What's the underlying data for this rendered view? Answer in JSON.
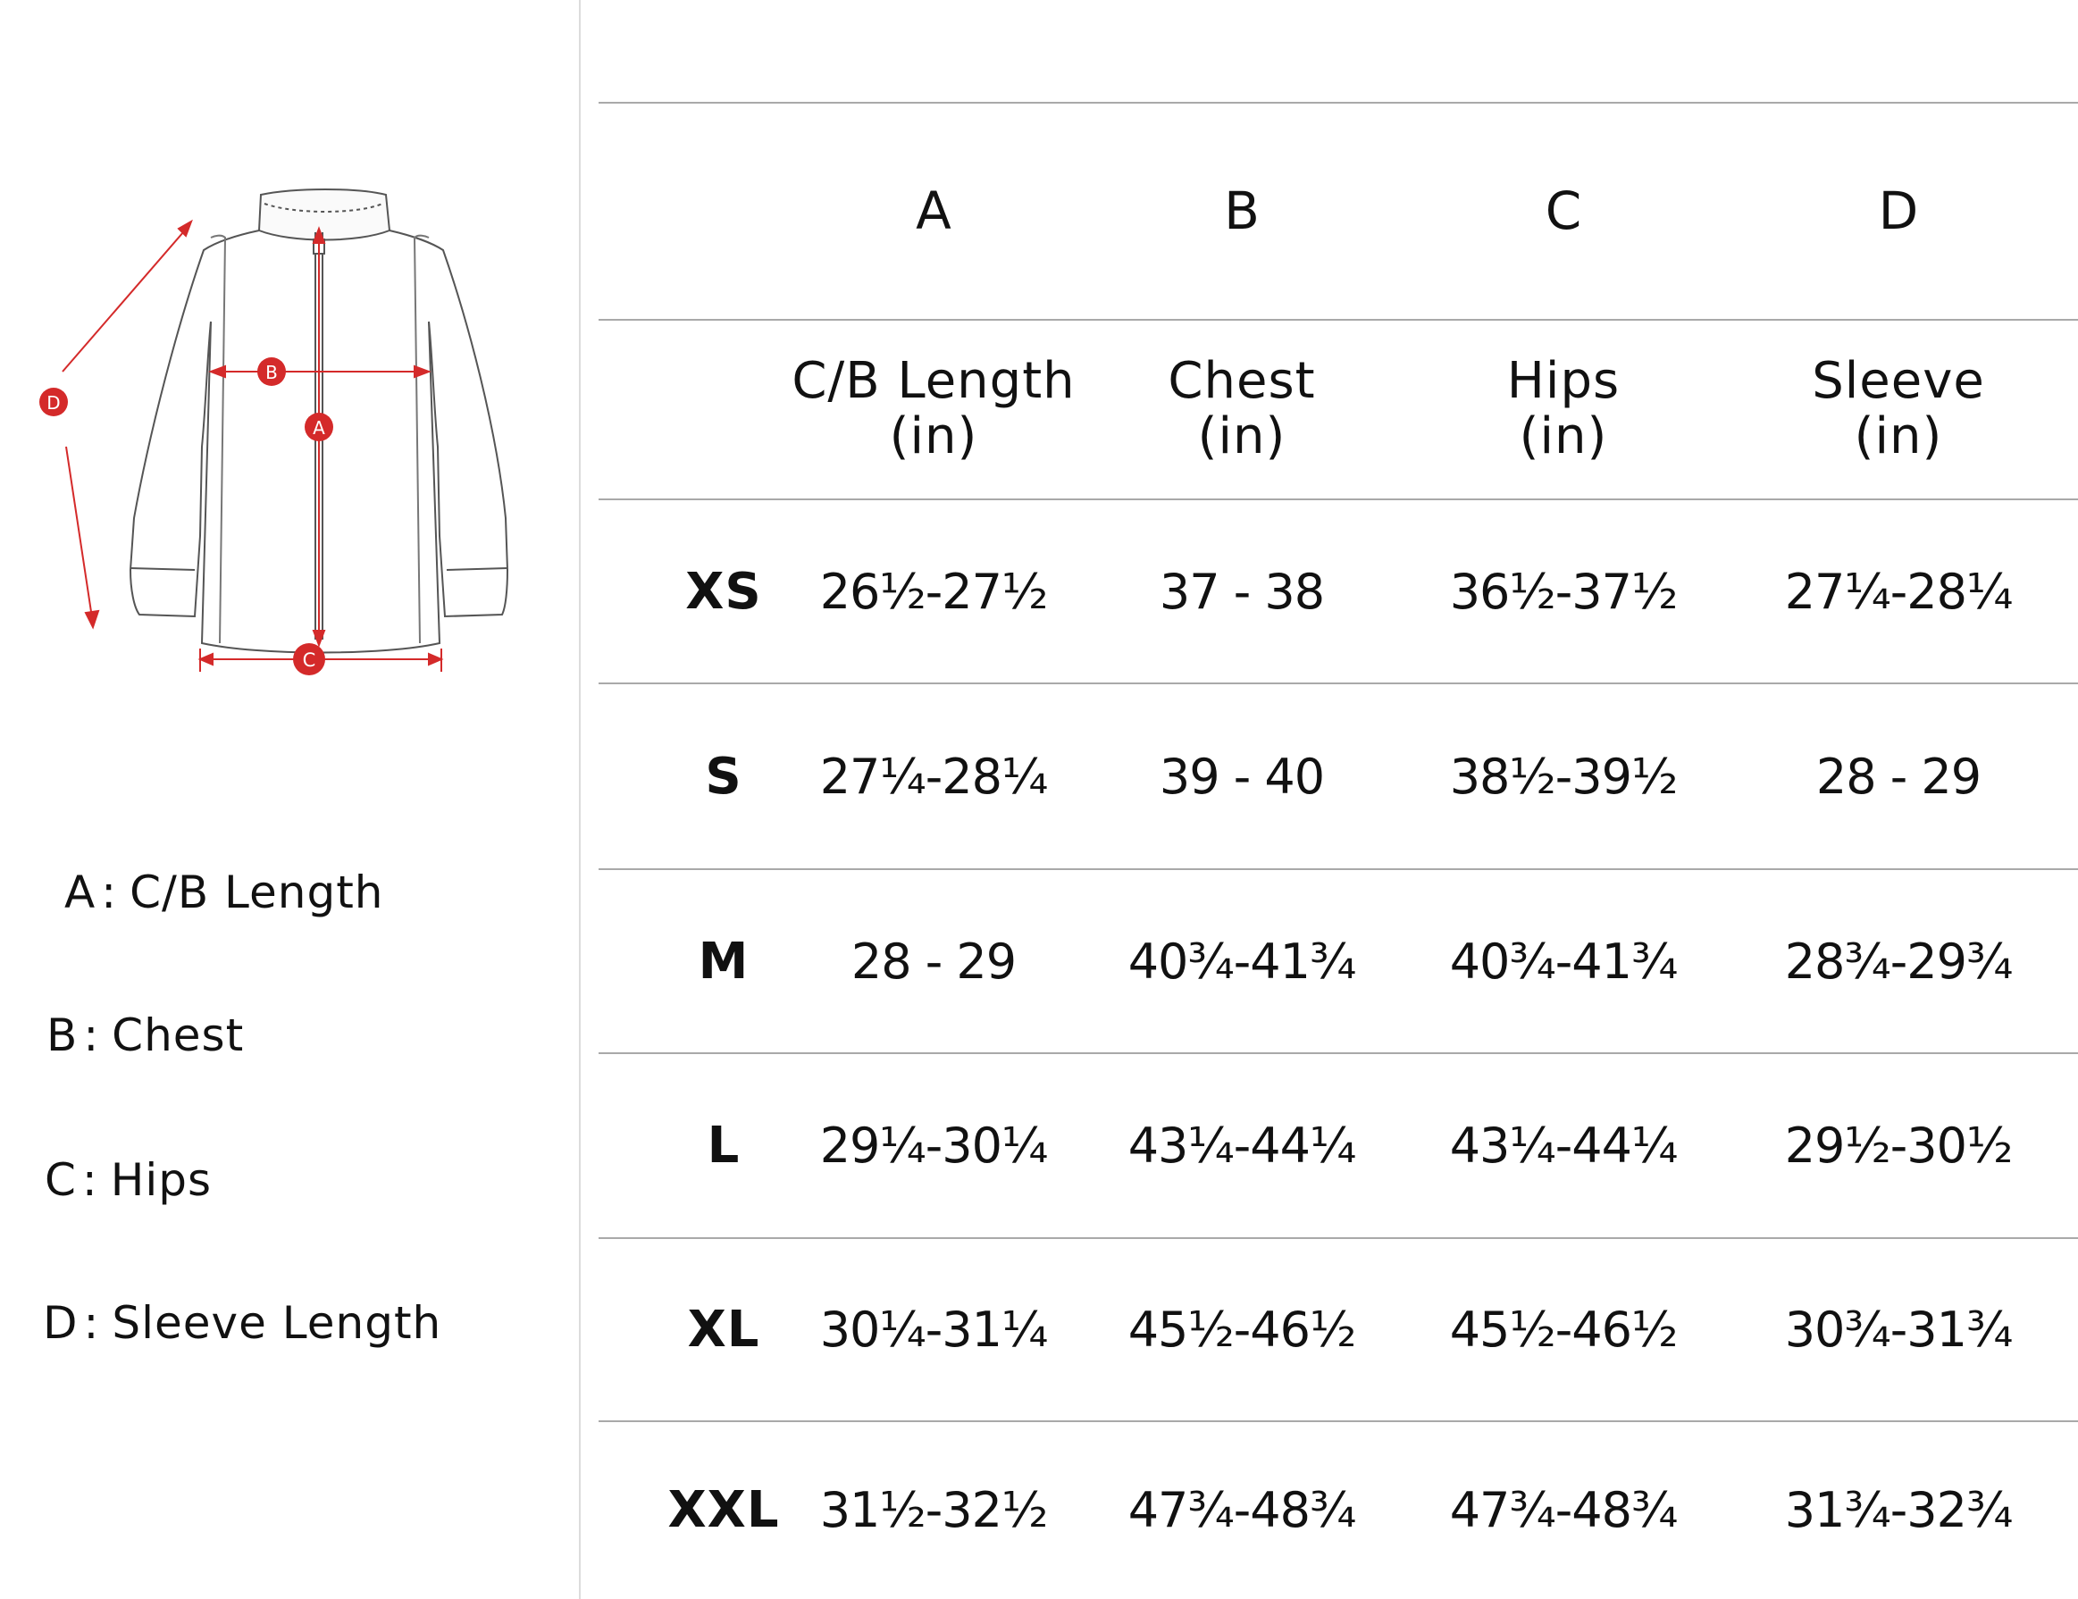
{
  "diagram": {
    "markers": [
      "A",
      "B",
      "C",
      "D"
    ],
    "accent_color": "#d42a2a"
  },
  "legend": [
    {
      "key": "A",
      "sep": ":",
      "label": "C/B Length"
    },
    {
      "key": "B",
      "sep": ":",
      "label": "Chest"
    },
    {
      "key": "C",
      "sep": ":",
      "label": "Hips"
    },
    {
      "key": "D",
      "sep": ":",
      "label": "Sleeve Length"
    }
  ],
  "table": {
    "letters": [
      "A",
      "B",
      "C",
      "D"
    ],
    "columns": [
      {
        "name": "C/B Length",
        "unit": "(in)"
      },
      {
        "name": "Chest",
        "unit": "(in)"
      },
      {
        "name": "Hips",
        "unit": "(in)"
      },
      {
        "name": "Sleeve",
        "unit": "(in)"
      }
    ],
    "rows": [
      {
        "size": "XS",
        "values": [
          "26½-27½",
          "37 - 38",
          "36½-37½",
          "27¼-28¼"
        ]
      },
      {
        "size": "S",
        "values": [
          "27¼-28¼",
          "39 - 40",
          "38½-39½",
          "28 - 29"
        ]
      },
      {
        "size": "M",
        "values": [
          "28 - 29",
          "40¾-41¾",
          "40¾-41¾",
          "28¾-29¾"
        ]
      },
      {
        "size": "L",
        "values": [
          "29¼-30¼",
          "43¼-44¼",
          "43¼-44¼",
          "29½-30½"
        ]
      },
      {
        "size": "XL",
        "values": [
          "30¼-31¼",
          "45½-46½",
          "45½-46½",
          "30¾-31¾"
        ]
      },
      {
        "size": "XXL",
        "values": [
          "31½-32½",
          "47¾-48¾",
          "47¾-48¾",
          "31¾-32¾"
        ]
      }
    ]
  }
}
